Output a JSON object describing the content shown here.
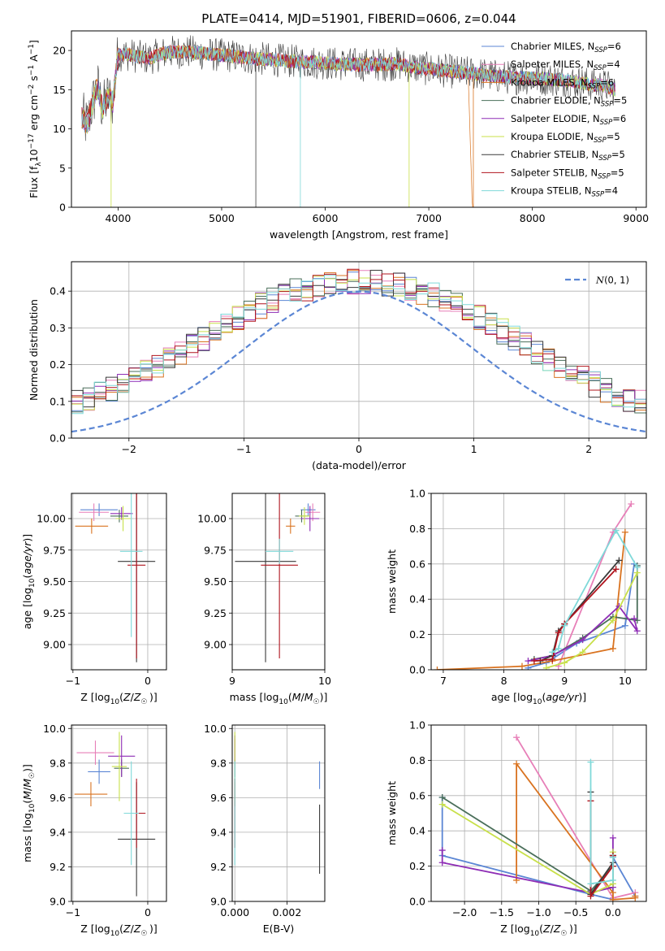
{
  "palette": [
    "#5b86d4",
    "#e77fb8",
    "#d97320",
    "#4a6f5a",
    "#8e2db5",
    "#c8e04a",
    "#3a3a3a",
    "#b0141e",
    "#7fd9d9"
  ],
  "models": [
    "Chabrier MILES, N_SSP=6",
    "Salpeter MILES, N_SSP=4",
    "Kroupa MILES, N_SSP=6",
    "Chabrier ELODIE, N_SSP=5",
    "Salpeter ELODIE, N_SSP=6",
    "Kroupa ELODIE, N_SSP=5",
    "Chabrier STELIB, N_SSP=5",
    "Salpeter STELIB, N_SSP=5",
    "Kroupa STELIB, N_SSP=4"
  ],
  "chart_data": [
    {
      "id": "spectrum",
      "type": "line",
      "title": "PLATE=0414, MJD=51901, FIBERID=0606, z=0.044",
      "xlabel": "wavelength [Angstrom, rest frame]",
      "ylabel": "Flux [f_λ 10^-17 erg cm^-2 s^-1 A^-1]",
      "xlim": [
        3550,
        9100
      ],
      "ylim": [
        0,
        22.5
      ],
      "xticks": [
        4000,
        5000,
        6000,
        7000,
        8000,
        9000
      ],
      "yticks": [
        0,
        5,
        10,
        15,
        20
      ],
      "legend": "upper right",
      "x": [
        3650,
        3700,
        3750,
        3800,
        3850,
        3900,
        3950,
        4000,
        4100,
        4200,
        4300,
        4400,
        4500,
        4700,
        4900,
        5100,
        5300,
        5500,
        5700,
        5900,
        6100,
        6300,
        6500,
        6700,
        6900,
        7100,
        7300,
        7500,
        7700,
        7900,
        8100,
        8300,
        8500,
        8700,
        8800
      ],
      "y": [
        11.5,
        10.5,
        13,
        15.5,
        12.5,
        14,
        13.5,
        19.5,
        19.5,
        19.2,
        19,
        19.5,
        19.8,
        19.8,
        19.5,
        19.3,
        19,
        18.8,
        18.6,
        18.5,
        18.3,
        18.2,
        18.2,
        18.3,
        17.8,
        17.5,
        17.2,
        17,
        16.6,
        16.5,
        16.4,
        16.2,
        15.8,
        15.5,
        15
      ],
      "dips": [
        [
          3933,
          0
        ],
        [
          5330,
          0
        ],
        [
          5760,
          0
        ],
        [
          6810,
          0
        ],
        [
          7430,
          0
        ]
      ]
    },
    {
      "id": "residuals",
      "type": "step",
      "xlabel": "(data-model)/error",
      "ylabel": "Normed distribution",
      "xlim": [
        -2.5,
        2.5
      ],
      "ylim": [
        0,
        0.48
      ],
      "xticks": [
        -2,
        -1,
        0,
        1,
        2
      ],
      "yticks": [
        0,
        0.1,
        0.2,
        0.3,
        0.4
      ],
      "legend": "upper right",
      "curve_label": "N(0,1)",
      "bin_width": 0.1,
      "reference_curve": "normal(0,1)"
    },
    {
      "id": "age-vs-Z",
      "type": "scatter",
      "xlabel": "Z [log10(Z/Z☉)]",
      "ylabel": "age [log10(age/yr)]",
      "xlim": [
        -1.02,
        0.25
      ],
      "ylim": [
        8.8,
        10.2
      ],
      "xticks": [
        -1,
        0
      ],
      "yticks": [
        9.0,
        9.25,
        9.5,
        9.75,
        10.0
      ],
      "points": [
        {
          "x": -0.65,
          "y": 10.07,
          "xerr": 0.25,
          "yerr": 0.05
        },
        {
          "x": -0.72,
          "y": 10.05,
          "xerr": 0.2,
          "yerr": 0.07
        },
        {
          "x": -0.75,
          "y": 9.94,
          "xerr": 0.22,
          "yerr": 0.06
        },
        {
          "x": -0.38,
          "y": 10.02,
          "xerr": 0.12,
          "yerr": 0.05
        },
        {
          "x": -0.35,
          "y": 10.04,
          "xerr": 0.15,
          "yerr": 0.05
        },
        {
          "x": -0.33,
          "y": 10.0,
          "xerr": 0.1,
          "yerr": 0.1
        },
        {
          "x": -0.15,
          "y": 9.66,
          "xerr": 0.25,
          "yerr": 0.8
        },
        {
          "x": -0.15,
          "y": 9.63,
          "xerr": 0.12,
          "yerr": 0.74
        },
        {
          "x": -0.22,
          "y": 9.74,
          "xerr": 0.15,
          "yerr": 0.68
        }
      ]
    },
    {
      "id": "age-vs-mass",
      "type": "scatter",
      "xlabel": "mass [log10(M/M☉)]",
      "ylabel": "",
      "xlim": [
        9.0,
        10.0
      ],
      "ylim": [
        8.8,
        10.2
      ],
      "xticks": [
        9,
        10
      ],
      "yticks": [
        9.0,
        9.25,
        9.5,
        9.75,
        10.0
      ],
      "points": [
        {
          "x": 9.82,
          "y": 10.07,
          "xerr": 0.08,
          "yerr": 0.05
        },
        {
          "x": 9.87,
          "y": 10.05,
          "xerr": 0.08,
          "yerr": 0.07
        },
        {
          "x": 9.63,
          "y": 9.94,
          "xerr": 0.05,
          "yerr": 0.06
        },
        {
          "x": 9.75,
          "y": 10.02,
          "xerr": 0.07,
          "yerr": 0.05
        },
        {
          "x": 9.84,
          "y": 10.0,
          "xerr": 0.1,
          "yerr": 0.1
        },
        {
          "x": 9.78,
          "y": 10.02,
          "xerr": 0.06,
          "yerr": 0.07
        },
        {
          "x": 9.36,
          "y": 9.66,
          "xerr": 0.33,
          "yerr": 0.8
        },
        {
          "x": 9.51,
          "y": 9.63,
          "xerr": 0.2,
          "yerr": 0.74
        },
        {
          "x": 9.51,
          "y": 9.74,
          "xerr": 0.15,
          "yerr": 0.1
        }
      ]
    },
    {
      "id": "massweight-vs-age",
      "type": "line",
      "xlabel": "age [log10(age/yr)]",
      "ylabel": "mass weight",
      "xlim": [
        6.8,
        10.35
      ],
      "ylim": [
        0,
        1.0
      ],
      "xticks": [
        7,
        8,
        9,
        10
      ],
      "yticks": [
        0.0,
        0.2,
        0.4,
        0.6,
        0.8,
        1.0
      ],
      "series": [
        {
          "x": [
            8.4,
            8.7,
            9.2,
            10.0,
            10.15,
            10.2
          ],
          "y": [
            0.01,
            0.04,
            0.15,
            0.25,
            0.6,
            0.59
          ]
        },
        {
          "x": [
            8.9,
            9.8,
            10.1
          ],
          "y": [
            0.02,
            0.78,
            0.94
          ]
        },
        {
          "x": [
            6.9,
            8.3,
            8.8,
            9.8,
            10.0
          ],
          "y": [
            0.0,
            0.02,
            0.05,
            0.12,
            0.78
          ]
        },
        {
          "x": [
            8.5,
            8.8,
            9.3,
            9.8,
            10.2,
            10.2
          ],
          "y": [
            0.06,
            0.08,
            0.18,
            0.3,
            0.28,
            0.59
          ]
        },
        {
          "x": [
            8.4,
            8.8,
            9.3,
            9.9,
            10.2,
            10.15
          ],
          "y": [
            0.05,
            0.08,
            0.17,
            0.36,
            0.22,
            0.29
          ]
        },
        {
          "x": [
            8.7,
            9.0,
            9.3,
            9.8,
            10.2
          ],
          "y": [
            0.01,
            0.04,
            0.1,
            0.28,
            0.55
          ]
        },
        {
          "x": [
            8.6,
            8.8,
            8.9,
            9.0,
            9.9
          ],
          "y": [
            0.05,
            0.08,
            0.22,
            0.26,
            0.62
          ]
        },
        {
          "x": [
            8.5,
            8.8,
            8.9,
            9.0,
            9.85
          ],
          "y": [
            0.05,
            0.06,
            0.21,
            0.26,
            0.57
          ]
        },
        {
          "x": [
            8.8,
            8.9,
            9.0,
            9.85,
            10.2
          ],
          "y": [
            0.1,
            0.12,
            0.25,
            0.79,
            0.58
          ]
        }
      ]
    },
    {
      "id": "mass-vs-Z",
      "type": "scatter",
      "xlabel": "Z [log10(Z/Z☉)]",
      "ylabel": "mass [log10(M/M☉)]",
      "xlim": [
        -1.02,
        0.25
      ],
      "ylim": [
        9.0,
        10.02
      ],
      "xticks": [
        -1,
        0
      ],
      "yticks": [
        9.0,
        9.2,
        9.4,
        9.6,
        9.8,
        10.0
      ],
      "points": [
        {
          "x": -0.65,
          "y": 9.75,
          "xerr": 0.15,
          "yerr": 0.07
        },
        {
          "x": -0.7,
          "y": 9.86,
          "xerr": 0.25,
          "yerr": 0.07
        },
        {
          "x": -0.76,
          "y": 9.62,
          "xerr": 0.22,
          "yerr": 0.07
        },
        {
          "x": -0.35,
          "y": 9.77,
          "xerr": 0.1,
          "yerr": 0.05
        },
        {
          "x": -0.35,
          "y": 9.84,
          "xerr": 0.18,
          "yerr": 0.12
        },
        {
          "x": -0.38,
          "y": 9.78,
          "xerr": 0.1,
          "yerr": 0.2
        },
        {
          "x": -0.15,
          "y": 9.36,
          "xerr": 0.25,
          "yerr": 0.33
        },
        {
          "x": -0.15,
          "y": 9.51,
          "xerr": 0.12,
          "yerr": 0.2
        },
        {
          "x": -0.22,
          "y": 9.51,
          "xerr": 0.1,
          "yerr": 0.3
        }
      ]
    },
    {
      "id": "mass-vs-EBV",
      "type": "scatter",
      "xlabel": "E(B-V)",
      "ylabel": "",
      "xlim": [
        -0.0001,
        0.00345
      ],
      "ylim": [
        9.0,
        10.02
      ],
      "xticks": [
        0.0,
        0.002
      ],
      "yticks": [
        9.0,
        9.2,
        9.4,
        9.6,
        9.8,
        10.0
      ],
      "points": [
        {
          "x": 0.00325,
          "y": 9.73,
          "xerr": 0,
          "yerr": 0.08
        },
        {
          "x": 0.0,
          "y": 9.86,
          "xerr": 0,
          "yerr": 0.08
        },
        {
          "x": 0.0,
          "y": 9.62,
          "xerr": 0,
          "yerr": 0.07
        },
        {
          "x": 0.0,
          "y": 9.77,
          "xerr": 0,
          "yerr": 0.05
        },
        {
          "x": 0.0,
          "y": 9.84,
          "xerr": 0,
          "yerr": 0.12
        },
        {
          "x": 0.0,
          "y": 9.78,
          "xerr": 0,
          "yerr": 0.2
        },
        {
          "x": 0.00325,
          "y": 9.36,
          "xerr": 0,
          "yerr": 0.2
        },
        {
          "x": 0.0,
          "y": 9.51,
          "xerr": 0,
          "yerr": 0.2
        },
        {
          "x": 0.0,
          "y": 9.51,
          "xerr": 0,
          "yerr": 0.3
        }
      ]
    },
    {
      "id": "massweight-vs-Z",
      "type": "line",
      "xlabel": "Z [log10(Z/Z☉)]",
      "ylabel": "mass weight",
      "xlim": [
        -2.45,
        0.45
      ],
      "ylim": [
        0,
        1.0
      ],
      "xticks": [
        -2.0,
        -1.5,
        -1.0,
        -0.5,
        0.0
      ],
      "yticks": [
        0.0,
        0.2,
        0.4,
        0.6,
        0.8,
        1.0
      ],
      "series": [
        {
          "x": [
            -2.3,
            -2.3,
            -0.3,
            0.0,
            0.0,
            0.3
          ],
          "y": [
            0.59,
            0.26,
            0.04,
            0.01,
            0.25,
            0.03
          ]
        },
        {
          "x": [
            -1.3,
            0.0,
            0.3
          ],
          "y": [
            0.93,
            0.02,
            0.05
          ]
        },
        {
          "x": [
            -1.3,
            -1.3,
            0.0,
            0.0,
            0.3,
            0.3
          ],
          "y": [
            0.12,
            0.78,
            0.05,
            0.01,
            0.02,
            0.03
          ]
        },
        {
          "x": [
            -2.3,
            -0.3,
            0.0,
            0.0
          ],
          "y": [
            0.59,
            0.06,
            0.2,
            0.26
          ]
        },
        {
          "x": [
            -2.3,
            -2.3,
            -0.3,
            0.0,
            0.0
          ],
          "y": [
            0.29,
            0.22,
            0.05,
            0.08,
            0.36
          ]
        },
        {
          "x": [
            -2.3,
            -0.3,
            0.0,
            0.0
          ],
          "y": [
            0.55,
            0.04,
            0.1,
            0.28
          ]
        },
        {
          "x": [
            -0.3,
            -0.3,
            0.0,
            0.0
          ],
          "y": [
            0.62,
            0.04,
            0.22,
            0.26
          ]
        },
        {
          "x": [
            -0.3,
            -0.3,
            0.0,
            0.0
          ],
          "y": [
            0.57,
            0.03,
            0.2,
            0.26
          ]
        },
        {
          "x": [
            -0.3,
            -0.3,
            0.0,
            0.0
          ],
          "y": [
            0.79,
            0.1,
            0.12,
            0.25
          ]
        }
      ]
    }
  ]
}
